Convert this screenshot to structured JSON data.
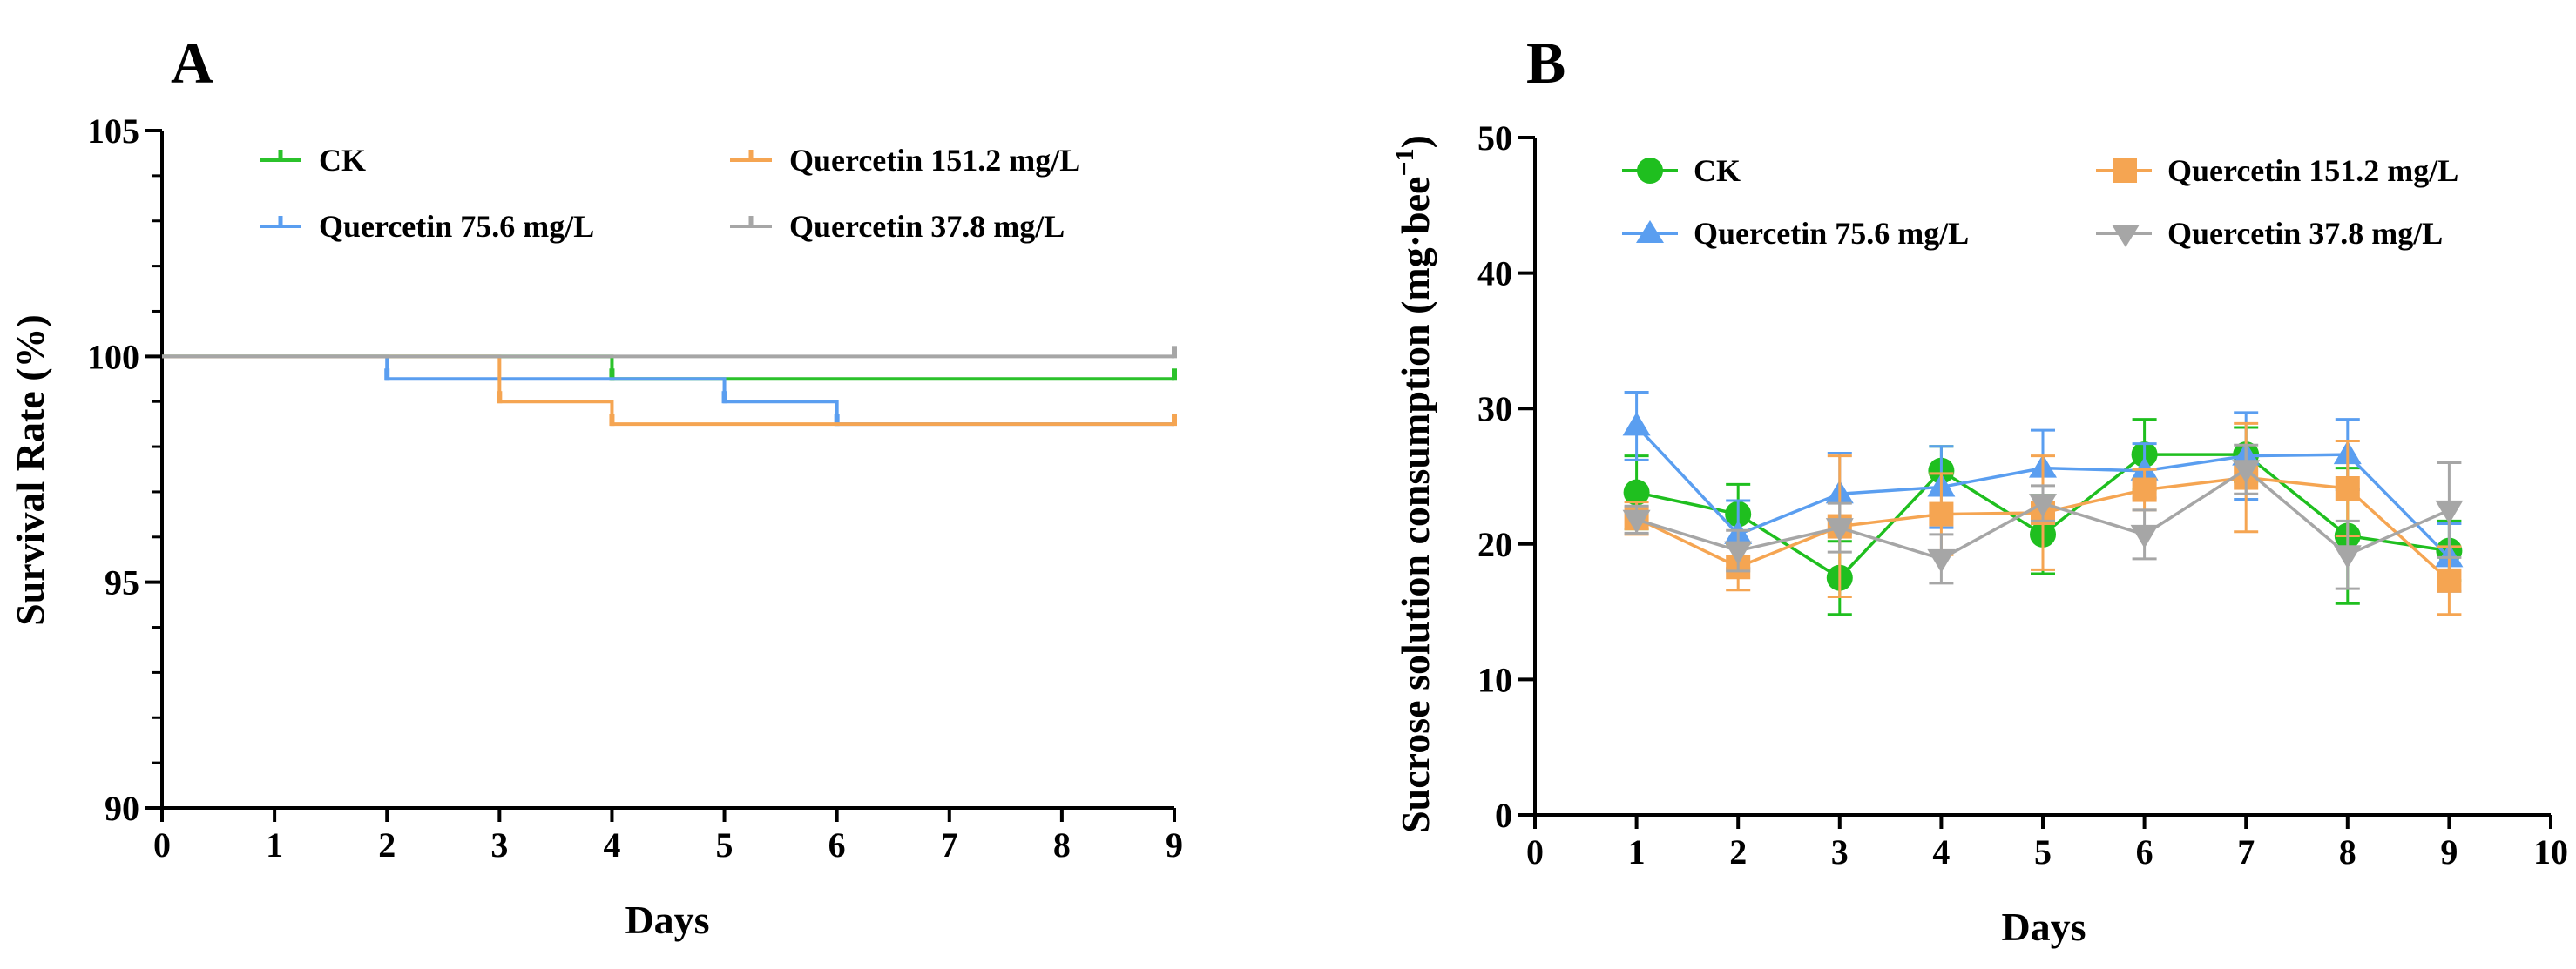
{
  "chart_data": [
    {
      "panel": "A",
      "type": "line",
      "subtype": "step",
      "title": "",
      "xlabel": "Days",
      "ylabel": "Survival Rate (%)",
      "xlim": [
        0,
        9
      ],
      "ylim": [
        90,
        105
      ],
      "xticks": [
        "0",
        "1",
        "2",
        "3",
        "4",
        "5",
        "6",
        "7",
        "8",
        "9"
      ],
      "yticks": [
        "90",
        "95",
        "100",
        "105"
      ],
      "grid": false,
      "legend_position": "top",
      "series": [
        {
          "name": "CK",
          "color": "#2bc22b",
          "x": [
            0,
            4,
            9
          ],
          "y": [
            100,
            99.5,
            99.5
          ],
          "censor_x": [
            4,
            9
          ]
        },
        {
          "name": "Quercetin 75.6 mg/L",
          "color": "#5a9ef0",
          "x": [
            0,
            2,
            5,
            6,
            9
          ],
          "y": [
            100,
            99.5,
            99.0,
            98.5,
            98.5
          ],
          "censor_x": [
            2,
            5,
            6
          ]
        },
        {
          "name": "Quercetin 151.2 mg/L",
          "color": "#f5a552",
          "x": [
            0,
            3,
            4,
            9
          ],
          "y": [
            100,
            99.0,
            98.5,
            98.5
          ],
          "censor_x": [
            3,
            4,
            9
          ]
        },
        {
          "name": "Quercetin 37.8 mg/L",
          "color": "#a6a6a6",
          "x": [
            0,
            9
          ],
          "y": [
            100,
            100
          ],
          "censor_x": [
            9
          ]
        }
      ]
    },
    {
      "panel": "B",
      "type": "line",
      "subtype": "error-bar",
      "title": "",
      "xlabel": "Days",
      "ylabel": "Sucrose solution consumption (mg·bee",
      "ylabel_superscript": "−1",
      "ylabel_close": ")",
      "xlim": [
        0,
        10
      ],
      "ylim": [
        0,
        50
      ],
      "xticks": [
        "0",
        "1",
        "2",
        "3",
        "4",
        "5",
        "6",
        "7",
        "8",
        "9",
        "10"
      ],
      "yticks": [
        "0",
        "10",
        "20",
        "30",
        "40",
        "50"
      ],
      "grid": false,
      "legend_position": "top",
      "x": [
        1,
        2,
        3,
        4,
        5,
        6,
        7,
        8,
        9
      ],
      "series": [
        {
          "name": "CK",
          "color": "#1fbf1f",
          "marker": "circle",
          "values": [
            23.8,
            22.2,
            17.5,
            25.4,
            20.7,
            26.6,
            26.6,
            20.6,
            19.5
          ],
          "errors": [
            2.7,
            2.2,
            2.7,
            1.8,
            2.9,
            2.6,
            2.0,
            5.0,
            2.2
          ]
        },
        {
          "name": "Quercetin 75.6 mg/L",
          "color": "#5a9ef0",
          "marker": "triangle-up",
          "values": [
            28.7,
            20.7,
            23.7,
            24.2,
            25.6,
            25.4,
            26.5,
            26.6,
            19.0
          ],
          "errors": [
            2.5,
            2.5,
            3.0,
            3.0,
            2.8,
            2.0,
            3.2,
            2.6,
            2.5
          ]
        },
        {
          "name": "Quercetin 151.2 mg/L",
          "color": "#f5a552",
          "marker": "square",
          "values": [
            21.9,
            18.3,
            21.3,
            22.2,
            22.3,
            24.0,
            24.9,
            24.1,
            17.3
          ],
          "errors": [
            1.2,
            1.7,
            5.2,
            3.0,
            4.2,
            1.5,
            4.0,
            3.5,
            2.5
          ]
        },
        {
          "name": "Quercetin 37.8 mg/L",
          "color": "#a6a6a6",
          "marker": "triangle-down",
          "values": [
            21.8,
            19.5,
            21.2,
            18.9,
            23.0,
            20.7,
            25.5,
            19.2,
            22.5
          ],
          "errors": [
            1.0,
            1.5,
            1.8,
            1.8,
            1.3,
            1.8,
            1.8,
            2.5,
            3.5
          ]
        }
      ]
    }
  ]
}
